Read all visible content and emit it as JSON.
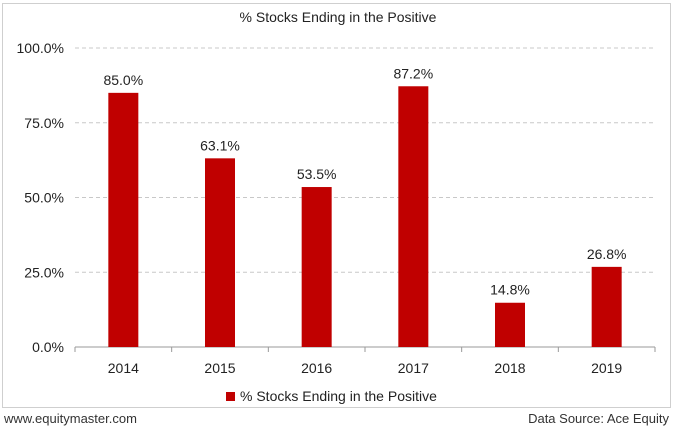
{
  "chart_data": {
    "type": "bar",
    "title": "% Stocks Ending in the Positive",
    "categories": [
      "2014",
      "2015",
      "2016",
      "2017",
      "2018",
      "2019"
    ],
    "series": [
      {
        "name": "% Stocks Ending in the Positive",
        "values": [
          85.0,
          63.1,
          53.5,
          87.2,
          14.8,
          26.8
        ],
        "color": "#c00000"
      }
    ],
    "data_labels": [
      "85.0%",
      "63.1%",
      "53.5%",
      "87.2%",
      "14.8%",
      "26.8%"
    ],
    "y_ticks": [
      "0.0%",
      "25.0%",
      "50.0%",
      "75.0%",
      "100.0%"
    ],
    "ylim": [
      0,
      100
    ],
    "xlabel": "",
    "ylabel": "",
    "grid": "horizontal-dashed",
    "legend": "bottom"
  },
  "footer": {
    "source_site": "www.equitymaster.com",
    "data_source": "Data Source: Ace Equity"
  }
}
